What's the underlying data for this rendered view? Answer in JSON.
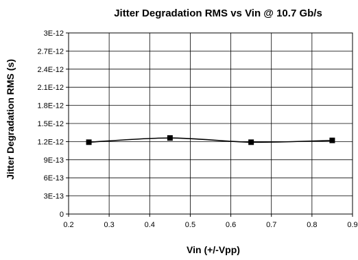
{
  "chart_data": {
    "type": "line",
    "title": "Jitter Degradation RMS vs Vin @ 10.7 Gb/s",
    "xlabel": "Vin (+/-Vpp)",
    "ylabel": "Jitter Degradation RMS (s)",
    "xlim": [
      0.2,
      0.9
    ],
    "ylim": [
      0,
      3e-12
    ],
    "x_ticks": [
      "0.2",
      "0.3",
      "0.4",
      "0.5",
      "0.6",
      "0.7",
      "0.8",
      "0.9"
    ],
    "y_ticks": [
      "0",
      "3E-13",
      "6E-13",
      "9E-13",
      "1.2E-12",
      "1.5E-12",
      "1.8E-12",
      "2.1E-12",
      "2.4E-12",
      "2.7E-12",
      "3E-12"
    ],
    "grid": true,
    "smooth": true,
    "marker": "square",
    "colors": {
      "line": "#000000",
      "grid": "#000000",
      "background": "#ffffff"
    },
    "series": [
      {
        "x": [
          0.25,
          0.45,
          0.65,
          0.85
        ],
        "y": [
          1.19e-12,
          1.26e-12,
          1.19e-12,
          1.22e-12
        ]
      }
    ]
  }
}
